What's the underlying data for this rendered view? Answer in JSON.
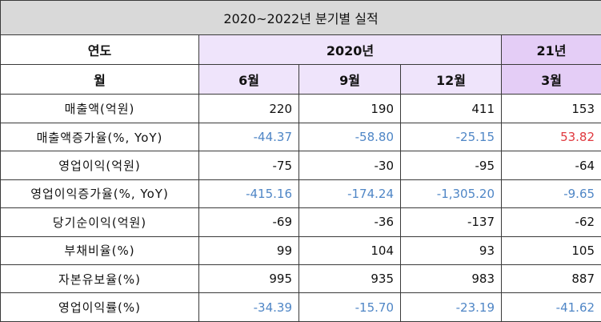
{
  "title": "2020~2022년 분기별 실적",
  "header": {
    "row1_label": "연도",
    "year_2020": "2020년",
    "year_2021": "21년",
    "row2_label": "월",
    "months": [
      "6월",
      "9월",
      "12월",
      "3월"
    ]
  },
  "colors": {
    "negative": "#4f86c6",
    "positive_growth": "#e0383e",
    "header_light": "#efe4fb",
    "header_dark": "#e4cdf6",
    "title_bg": "#d9d9d9"
  },
  "rows": [
    {
      "label": "매출액(억원)",
      "values": [
        "220",
        "190",
        "411",
        "153"
      ]
    },
    {
      "label": "매출액증가율(%, YoY)",
      "values": [
        "-44.37",
        "-58.80",
        "-25.15",
        "53.82"
      ]
    },
    {
      "label": "영업이익(억원)",
      "values": [
        "-75",
        "-30",
        "-95",
        "-64"
      ]
    },
    {
      "label": "영업이익증가율(%, YoY)",
      "values": [
        "-415.16",
        "-174.24",
        "-1,305.20",
        "-9.65"
      ]
    },
    {
      "label": "당기순이익(억원)",
      "values": [
        "-69",
        "-36",
        "-137",
        "-62"
      ]
    },
    {
      "label": "부채비율(%)",
      "values": [
        "99",
        "104",
        "93",
        "105"
      ]
    },
    {
      "label": "자본유보율(%)",
      "values": [
        "995",
        "935",
        "983",
        "887"
      ]
    },
    {
      "label": "영업이익률(%)",
      "values": [
        "-34.39",
        "-15.70",
        "-23.19",
        "-41.62"
      ]
    }
  ]
}
